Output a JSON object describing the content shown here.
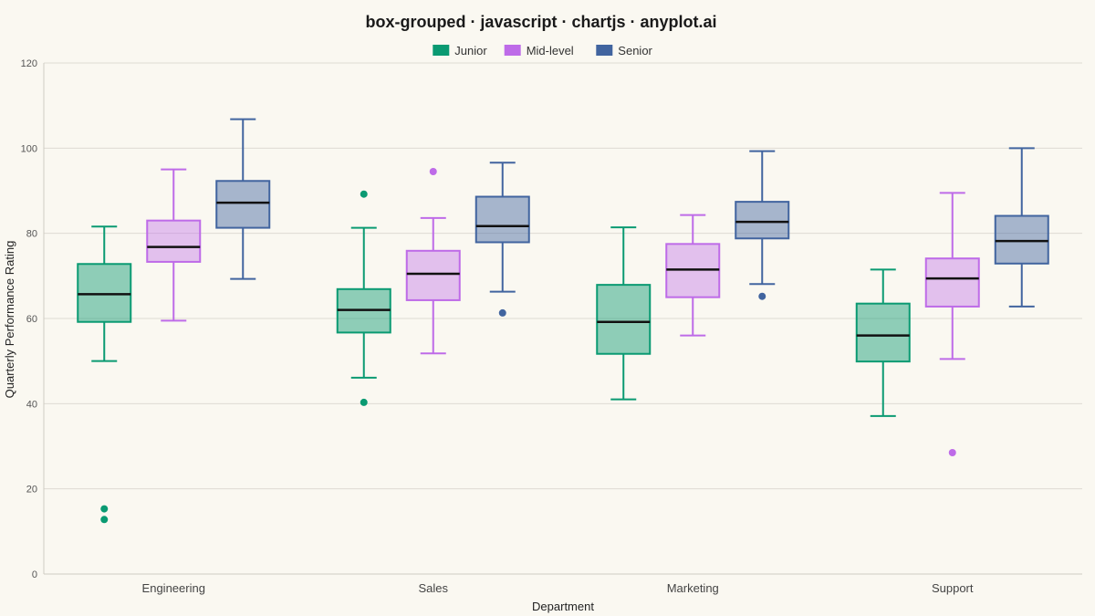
{
  "chart_data": {
    "type": "box",
    "title": "box-grouped · javascript · chartjs · anyplot.ai",
    "xlabel": "Department",
    "ylabel": "Quarterly Performance Rating",
    "ylim": [
      0,
      120
    ],
    "y_ticks": [
      0,
      20,
      40,
      60,
      80,
      100,
      120
    ],
    "grid": true,
    "legend_position": "top-center",
    "categories": [
      "Engineering",
      "Sales",
      "Marketing",
      "Support"
    ],
    "series": [
      {
        "name": "Junior",
        "color": "#0A9A72",
        "fill": "rgba(10,154,114,0.45)",
        "boxes": [
          {
            "min": 50,
            "q1": 59.2,
            "median": 65.7,
            "q3": 72.8,
            "max": 81.6,
            "outliers": [
              15.3,
              12.8
            ]
          },
          {
            "min": 46.1,
            "q1": 56.7,
            "median": 62,
            "q3": 66.9,
            "max": 81.3,
            "outliers": [
              89.2,
              40.3
            ]
          },
          {
            "min": 41,
            "q1": 51.7,
            "median": 59.2,
            "q3": 67.9,
            "max": 81.4,
            "outliers": []
          },
          {
            "min": 37.1,
            "q1": 49.9,
            "median": 56,
            "q3": 63.5,
            "max": 71.5,
            "outliers": []
          }
        ]
      },
      {
        "name": "Mid-level",
        "color": "#BE6BE8",
        "fill": "rgba(190,107,232,0.40)",
        "boxes": [
          {
            "min": 59.5,
            "q1": 73.3,
            "median": 76.8,
            "q3": 83,
            "max": 95,
            "outliers": []
          },
          {
            "min": 51.8,
            "q1": 64.3,
            "median": 70.5,
            "q3": 75.9,
            "max": 83.6,
            "outliers": [
              94.5
            ]
          },
          {
            "min": 56,
            "q1": 65,
            "median": 71.5,
            "q3": 77.5,
            "max": 84.3,
            "outliers": []
          },
          {
            "min": 50.5,
            "q1": 62.8,
            "median": 69.4,
            "q3": 74.1,
            "max": 89.5,
            "outliers": [
              28.5
            ]
          }
        ]
      },
      {
        "name": "Senior",
        "color": "#41649F",
        "fill": "rgba(65,100,159,0.45)",
        "boxes": [
          {
            "min": 69.3,
            "q1": 81.3,
            "median": 87.2,
            "q3": 92.3,
            "max": 106.8,
            "outliers": []
          },
          {
            "min": 66.3,
            "q1": 77.9,
            "median": 81.7,
            "q3": 88.6,
            "max": 96.6,
            "outliers": [
              61.3
            ]
          },
          {
            "min": 68.1,
            "q1": 78.8,
            "median": 82.7,
            "q3": 87.4,
            "max": 99.3,
            "outliers": [
              65.2
            ]
          },
          {
            "min": 62.8,
            "q1": 72.9,
            "median": 78.2,
            "q3": 84.1,
            "max": 100,
            "outliers": []
          }
        ]
      }
    ]
  }
}
